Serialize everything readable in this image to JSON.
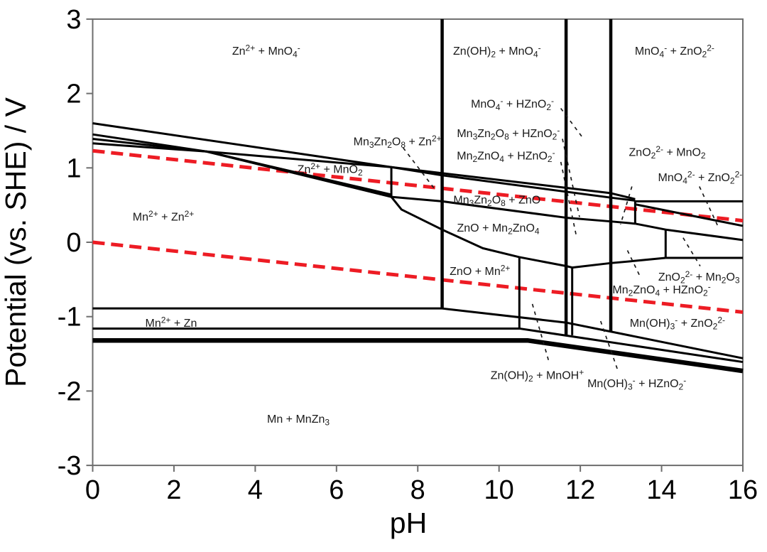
{
  "chart_data": {
    "type": "line",
    "subtype": "pourbaix-potential-pH-phase-diagram",
    "title": "",
    "xlabel": "pH",
    "ylabel": "Potential (vs. SHE) / V",
    "xlim": [
      0,
      16
    ],
    "ylim": [
      -3,
      3
    ],
    "x_ticks": [
      0,
      2,
      4,
      6,
      8,
      10,
      12,
      14,
      16
    ],
    "y_ticks": [
      -3,
      -2,
      -1,
      0,
      1,
      2,
      3
    ],
    "grid": false,
    "legend": false,
    "colors": {
      "boundary_line": "#000000",
      "red_dashed_line": "#ed1c24",
      "leader_line": "#1a1a1a",
      "frame": "#6e6e6e",
      "label_text": "#1a1a1a"
    },
    "water_stability_lines": [
      {
        "id": "upper-red-dashed",
        "points": [
          [
            0,
            1.23
          ],
          [
            16,
            0.29
          ]
        ]
      },
      {
        "id": "lower-red-dashed",
        "points": [
          [
            0,
            0.0
          ],
          [
            16,
            -0.94
          ]
        ]
      }
    ],
    "phase_boundaries": [
      {
        "id": "upper-left-1",
        "w": 3,
        "pts": [
          [
            0,
            1.6
          ],
          [
            7.35,
            1.01
          ]
        ]
      },
      {
        "id": "upper-left-2",
        "w": 3,
        "pts": [
          [
            0,
            1.45
          ],
          [
            2.8,
            1.22
          ],
          [
            7.35,
            1.01
          ]
        ]
      },
      {
        "id": "upper-left-3",
        "w": 3,
        "pts": [
          [
            0,
            1.39
          ],
          [
            2.8,
            1.22
          ],
          [
            7.35,
            0.64
          ]
        ]
      },
      {
        "id": "upper-left-4",
        "w": 3,
        "pts": [
          [
            0,
            1.33
          ],
          [
            2.8,
            1.22
          ],
          [
            7.35,
            0.61
          ]
        ]
      },
      {
        "id": "vertical-ph7-35",
        "w": 3,
        "pts": [
          [
            7.35,
            1.01
          ],
          [
            7.35,
            0.61
          ]
        ]
      },
      {
        "id": "mid-diag-a",
        "w": 3,
        "pts": [
          [
            7.35,
            1.01
          ],
          [
            12.75,
            0.66
          ],
          [
            13.35,
            0.58
          ]
        ]
      },
      {
        "id": "mid-diag-b",
        "w": 3,
        "pts": [
          [
            7.35,
            1.01
          ],
          [
            8.6,
            0.9
          ],
          [
            12.75,
            0.6
          ],
          [
            13.35,
            0.56
          ]
        ]
      },
      {
        "id": "band-bottom",
        "w": 3,
        "pts": [
          [
            7.35,
            0.61
          ],
          [
            8.6,
            0.55
          ],
          [
            11.65,
            0.33
          ],
          [
            12.75,
            0.28
          ],
          [
            13.35,
            0.25
          ]
        ]
      },
      {
        "id": "zno-curve",
        "w": 3,
        "pts": [
          [
            7.35,
            0.61
          ],
          [
            7.6,
            0.44
          ],
          [
            8.6,
            0.17
          ],
          [
            9.6,
            -0.08
          ],
          [
            10.5,
            -0.2
          ],
          [
            11.65,
            -0.32
          ]
        ]
      },
      {
        "id": "right-mid",
        "w": 3,
        "pts": [
          [
            11.65,
            -0.32
          ],
          [
            11.8,
            -0.34
          ],
          [
            12.75,
            -0.28
          ],
          [
            13.35,
            -0.25
          ],
          [
            14.1,
            -0.21
          ]
        ]
      },
      {
        "id": "h-line-zn",
        "w": 3,
        "pts": [
          [
            0,
            -0.89
          ],
          [
            8.6,
            -0.89
          ],
          [
            11.65,
            -1.08
          ],
          [
            16,
            -1.56
          ]
        ]
      },
      {
        "id": "h-line-mid",
        "w": 3,
        "pts": [
          [
            0,
            -1.16
          ],
          [
            10.5,
            -1.16
          ],
          [
            16,
            -1.61
          ]
        ]
      },
      {
        "id": "h-line-mn-thick",
        "w": 6.5,
        "pts": [
          [
            0,
            -1.32
          ],
          [
            10.7,
            -1.32
          ],
          [
            16,
            -1.73
          ]
        ]
      },
      {
        "id": "vertical-ph8-6",
        "w": 4.5,
        "pts": [
          [
            8.6,
            3
          ],
          [
            8.6,
            -0.89
          ]
        ]
      },
      {
        "id": "vertical-ph11-65",
        "w": 4.5,
        "pts": [
          [
            11.65,
            3
          ],
          [
            11.65,
            -1.26
          ]
        ]
      },
      {
        "id": "vertical-ph12-75",
        "w": 4.5,
        "pts": [
          [
            12.75,
            3
          ],
          [
            12.75,
            -1.2
          ]
        ]
      },
      {
        "id": "vertical-ph13-35",
        "w": 3,
        "pts": [
          [
            13.35,
            0.56
          ],
          [
            13.35,
            0.25
          ]
        ]
      },
      {
        "id": "vertical-ph14-1",
        "w": 3,
        "pts": [
          [
            14.1,
            0.17
          ],
          [
            14.1,
            -0.21
          ]
        ]
      },
      {
        "id": "vertical-ph10-5",
        "w": 3,
        "pts": [
          [
            10.5,
            -0.2
          ],
          [
            10.5,
            -1.16
          ]
        ]
      },
      {
        "id": "vertical-ph11-8",
        "w": 3,
        "pts": [
          [
            11.8,
            -0.34
          ],
          [
            11.8,
            -1.25
          ]
        ]
      },
      {
        "id": "top-right-horizontal",
        "w": 3,
        "pts": [
          [
            13.35,
            0.55
          ],
          [
            16,
            0.55
          ]
        ]
      },
      {
        "id": "top-right-diag-1",
        "w": 3,
        "pts": [
          [
            13.35,
            0.51
          ],
          [
            16,
            0.22
          ]
        ]
      },
      {
        "id": "top-right-diag-2",
        "w": 3,
        "pts": [
          [
            13.35,
            0.25
          ],
          [
            14.1,
            0.17
          ],
          [
            16,
            0.03
          ]
        ]
      },
      {
        "id": "bottom-right-horizontal",
        "w": 3,
        "pts": [
          [
            14.1,
            -0.21
          ],
          [
            16,
            -0.21
          ]
        ]
      }
    ],
    "region_labels": [
      {
        "text": "Zn^2+^ + MnO_4_^-^",
        "ph": 4.27,
        "v": 2.57
      },
      {
        "text": "Zn(OH)_2_ + MnO_4_^-^",
        "ph": 9.95,
        "v": 2.57
      },
      {
        "text": "MnO_4_^-^ + ZnO_2_^2-^",
        "ph": 14.32,
        "v": 2.57
      },
      {
        "text": "MnO_4_^-^ + HZnO_2_^-^",
        "ph": 10.33,
        "v": 1.86
      },
      {
        "text": "Mn_3_Zn_2_O_8_ + HZnO_2_^-^",
        "ph": 10.23,
        "v": 1.46
      },
      {
        "text": "Mn_2_ZnO_4_ + HZnO_2_^-^",
        "ph": 10.17,
        "v": 1.16
      },
      {
        "text": "Mn_3_Zn_2_O_8_ + Zn^2+^",
        "ph": 7.5,
        "v": 1.35
      },
      {
        "text": "Zn^2+^ + MnO_2_",
        "ph": 5.84,
        "v": 0.98
      },
      {
        "text": "ZnO_2_^2-^ + MnO_2_",
        "ph": 14.14,
        "v": 1.21
      },
      {
        "text": "MnO_4_^2-^ + ZnO_2_^2-^",
        "ph": 14.95,
        "v": 0.87
      },
      {
        "text": "Mn_3_Zn_2_O_8_ + ZnO",
        "ph": 9.95,
        "v": 0.57
      },
      {
        "text": "Mn^2+^ + Zn^2+^",
        "ph": 1.74,
        "v": 0.34
      },
      {
        "text": "ZnO + Mn_2_ZnO_4_",
        "ph": 9.98,
        "v": 0.19
      },
      {
        "text": "ZnO_2_^2-^ + Mn_2_O_3_",
        "ph": 14.92,
        "v": -0.47
      },
      {
        "text": "ZnO + Mn^2+^",
        "ph": 9.53,
        "v": -0.39
      },
      {
        "text": "Mn_2_ZnO_4_ + HZnO_2_^-^",
        "ph": 14.0,
        "v": -0.64
      },
      {
        "text": "Mn(OH)_3_^-^ + ZnO_2_^2-^",
        "ph": 14.39,
        "v": -1.09
      },
      {
        "text": "Mn^2+^ + Zn",
        "ph": 1.93,
        "v": -1.09
      },
      {
        "text": "Zn(OH)_2_ + MnOH^+^",
        "ph": 10.94,
        "v": -1.79
      },
      {
        "text": "Mn(OH)_3_^-^ + HZnO_2_^-^",
        "ph": 13.39,
        "v": -1.9
      },
      {
        "text": "Mn + MnZn_3_",
        "ph": 5.06,
        "v": -2.38
      }
    ],
    "leader_lines": [
      [
        7.64,
        1.27,
        8.41,
        0.72
      ],
      [
        11.52,
        1.8,
        12.08,
        1.39
      ],
      [
        11.56,
        1.39,
        11.98,
        0.34
      ],
      [
        11.52,
        1.08,
        11.9,
        0.09
      ],
      [
        13.27,
        0.75,
        12.99,
        0.24
      ],
      [
        14.93,
        0.75,
        15.4,
        0.2
      ],
      [
        14.53,
        0.06,
        14.95,
        -0.32
      ],
      [
        13.16,
        -0.11,
        13.48,
        -0.47
      ],
      [
        10.82,
        -0.83,
        11.24,
        -1.63
      ],
      [
        12.5,
        -1.06,
        12.94,
        -1.75
      ]
    ]
  }
}
